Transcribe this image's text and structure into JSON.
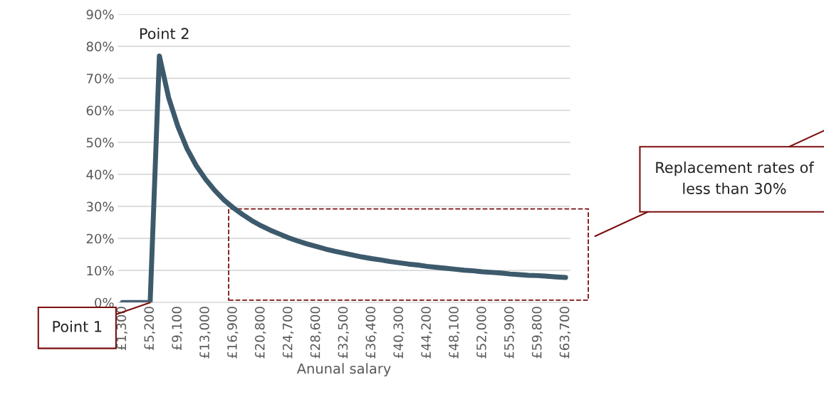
{
  "chart_data": {
    "type": "line",
    "xlabel": "Anunal salary",
    "x": [
      1300,
      2600,
      3900,
      5200,
      6500,
      7800,
      9100,
      10400,
      11700,
      13000,
      14300,
      15600,
      16900,
      18200,
      19500,
      20800,
      22100,
      23400,
      24700,
      26000,
      27300,
      28600,
      29900,
      31200,
      32500,
      33800,
      35100,
      36400,
      37700,
      39000,
      40300,
      41600,
      42900,
      44200,
      45500,
      46800,
      48100,
      49400,
      50700,
      52000,
      53300,
      54600,
      55900,
      57200,
      58500,
      59800,
      61100,
      62400,
      63700
    ],
    "series": [
      {
        "color": "#3d5a6c",
        "values": [
          0,
          0,
          0,
          0,
          77,
          64,
          55,
          48,
          42.7,
          38.5,
          35,
          32,
          29.6,
          27.5,
          25.6,
          24,
          22.6,
          21.4,
          20.2,
          19.2,
          18.3,
          17.5,
          16.7,
          16,
          15.4,
          14.8,
          14.2,
          13.7,
          13.3,
          12.8,
          12.4,
          12,
          11.7,
          11.3,
          11,
          10.7,
          10.4,
          10.1,
          9.9,
          9.6,
          9.4,
          9.2,
          8.9,
          8.7,
          8.5,
          8.4,
          8.2,
          8,
          7.8
        ]
      }
    ],
    "xlim": [
      650,
      64350
    ],
    "xticks": [
      {
        "value": 1300,
        "label": "£1,300"
      },
      {
        "value": 5200,
        "label": "£5,200"
      },
      {
        "value": 9100,
        "label": "£9,100"
      },
      {
        "value": 13000,
        "label": "£13,000"
      },
      {
        "value": 16900,
        "label": "£16,900"
      },
      {
        "value": 20800,
        "label": "£20,800"
      },
      {
        "value": 24700,
        "label": "£24,700"
      },
      {
        "value": 28600,
        "label": "£28,600"
      },
      {
        "value": 32500,
        "label": "£32,500"
      },
      {
        "value": 36400,
        "label": "£36,400"
      },
      {
        "value": 40300,
        "label": "£40,300"
      },
      {
        "value": 44200,
        "label": "£44,200"
      },
      {
        "value": 48100,
        "label": "£48,100"
      },
      {
        "value": 52000,
        "label": "£52,000"
      },
      {
        "value": 55900,
        "label": "£55,900"
      },
      {
        "value": 59800,
        "label": "£59,800"
      },
      {
        "value": 63700,
        "label": "£63,700"
      }
    ],
    "ylim": [
      0,
      90
    ],
    "yticks": [
      {
        "value": 0,
        "label": "0%"
      },
      {
        "value": 10,
        "label": "10%"
      },
      {
        "value": 20,
        "label": "20%"
      },
      {
        "value": 30,
        "label": "30%"
      },
      {
        "value": 40,
        "label": "40%"
      },
      {
        "value": 50,
        "label": "50%"
      },
      {
        "value": 60,
        "label": "60%"
      },
      {
        "value": 70,
        "label": "70%"
      },
      {
        "value": 80,
        "label": "80%"
      },
      {
        "value": 90,
        "label": "90%"
      }
    ],
    "grid": "y",
    "legend": false,
    "marker": "none",
    "line_style": "solid",
    "annotations": [
      {
        "text": "Point 2",
        "x": 6500,
        "y": 77
      },
      {
        "text": "Point 1",
        "x": 5200,
        "y": 0
      },
      "Replacement rates of less than 30%"
    ]
  }
}
